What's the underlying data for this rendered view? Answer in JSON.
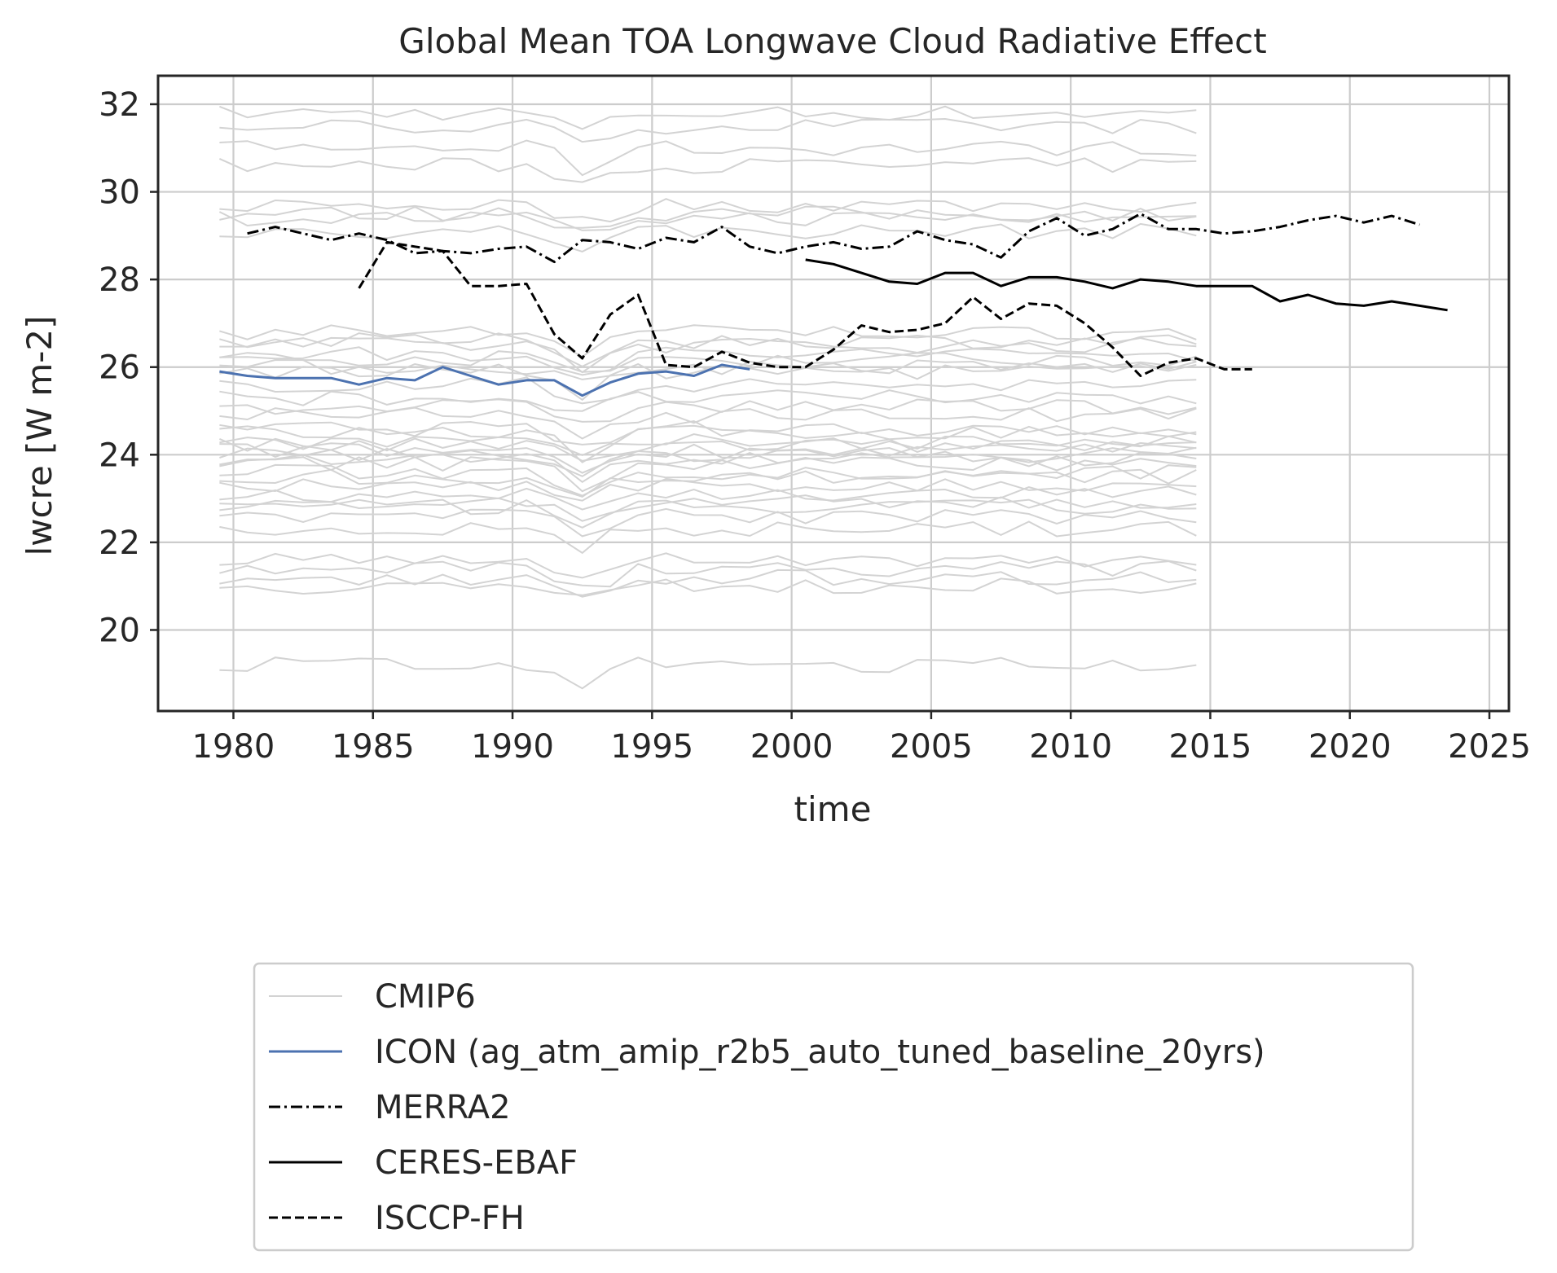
{
  "chart_data": {
    "type": "line",
    "title": "Global Mean TOA Longwave Cloud Radiative Effect",
    "xlabel": "time",
    "ylabel": "lwcre [W m-2]",
    "xlim": [
      1977.3,
      2025.7
    ],
    "ylim": [
      18.15,
      32.65
    ],
    "xticks": [
      1980,
      1985,
      1990,
      1995,
      2000,
      2005,
      2010,
      2015,
      2020,
      2025
    ],
    "yticks": [
      20,
      22,
      24,
      26,
      28,
      30,
      32
    ],
    "grid": true,
    "legend_position": "bottom-center below plot",
    "cmip6_ensemble": {
      "name": "CMIP6",
      "color": "#d3d3d3",
      "x_start": 1979.5,
      "x_end": 2014.5,
      "member_means": [
        31.8,
        31.5,
        31.0,
        30.6,
        29.7,
        29.5,
        29.4,
        29.1,
        26.8,
        26.6,
        26.5,
        26.3,
        26.2,
        26.0,
        25.9,
        25.6,
        25.3,
        25.1,
        24.9,
        24.6,
        24.5,
        24.3,
        24.2,
        24.1,
        24.0,
        23.9,
        23.8,
        23.6,
        23.5,
        23.3,
        23.1,
        22.9,
        22.8,
        22.6,
        22.3,
        21.6,
        21.4,
        21.2,
        21.0,
        19.2
      ]
    },
    "series": [
      {
        "name": "ICON (ag_atm_amip_r2b5_auto_tuned_baseline_20yrs)",
        "color": "#4c72b0",
        "style": "solid",
        "x": [
          1979.5,
          1980.5,
          1981.5,
          1982.5,
          1983.5,
          1984.5,
          1985.5,
          1986.5,
          1987.5,
          1988.5,
          1989.5,
          1990.5,
          1991.5,
          1992.5,
          1993.5,
          1994.5,
          1995.5,
          1996.5,
          1997.5,
          1998.5
        ],
        "y": [
          25.9,
          25.8,
          25.75,
          25.75,
          25.75,
          25.6,
          25.75,
          25.7,
          26.0,
          25.8,
          25.6,
          25.7,
          25.7,
          25.35,
          25.65,
          25.85,
          25.9,
          25.8,
          26.05,
          25.95
        ]
      },
      {
        "name": "MERRA2",
        "color": "#000000",
        "style": "dashdot",
        "x": [
          1980.5,
          1981.5,
          1982.5,
          1983.5,
          1984.5,
          1985.5,
          1986.5,
          1987.5,
          1988.5,
          1989.5,
          1990.5,
          1991.5,
          1992.5,
          1993.5,
          1994.5,
          1995.5,
          1996.5,
          1997.5,
          1998.5,
          1999.5,
          2000.5,
          2001.5,
          2002.5,
          2003.5,
          2004.5,
          2005.5,
          2006.5,
          2007.5,
          2008.5,
          2009.5,
          2010.5,
          2011.5,
          2012.5,
          2013.5,
          2014.5,
          2015.5,
          2016.5,
          2017.5,
          2018.5,
          2019.5,
          2020.5,
          2021.5,
          2022.5
        ],
        "y": [
          29.05,
          29.2,
          29.05,
          28.9,
          29.05,
          28.9,
          28.6,
          28.65,
          28.6,
          28.7,
          28.75,
          28.4,
          28.9,
          28.85,
          28.7,
          28.95,
          28.85,
          29.2,
          28.75,
          28.6,
          28.75,
          28.85,
          28.7,
          28.75,
          29.1,
          28.9,
          28.8,
          28.5,
          29.1,
          29.4,
          29.0,
          29.15,
          29.5,
          29.15,
          29.15,
          29.05,
          29.1,
          29.2,
          29.35,
          29.45,
          29.3,
          29.45,
          29.25
        ]
      },
      {
        "name": "CERES-EBAF",
        "color": "#000000",
        "style": "solid",
        "x": [
          2000.5,
          2001.5,
          2002.5,
          2003.5,
          2004.5,
          2005.5,
          2006.5,
          2007.5,
          2008.5,
          2009.5,
          2010.5,
          2011.5,
          2012.5,
          2013.5,
          2014.5,
          2015.5,
          2016.5,
          2017.5,
          2018.5,
          2019.5,
          2020.5,
          2021.5,
          2022.5,
          2023.5
        ],
        "y": [
          28.45,
          28.35,
          28.15,
          27.95,
          27.9,
          28.15,
          28.15,
          27.85,
          28.05,
          28.05,
          27.95,
          27.8,
          28.0,
          27.95,
          27.85,
          27.85,
          27.85,
          27.5,
          27.65,
          27.45,
          27.4,
          27.5,
          27.4,
          27.3
        ]
      },
      {
        "name": "ISCCP-FH",
        "color": "#000000",
        "style": "dashed",
        "x": [
          1984.5,
          1985.5,
          1986.5,
          1987.5,
          1988.5,
          1989.5,
          1990.5,
          1991.5,
          1992.5,
          1993.5,
          1994.5,
          1995.5,
          1996.5,
          1997.5,
          1998.5,
          1999.5,
          2000.5,
          2001.5,
          2002.5,
          2003.5,
          2004.5,
          2005.5,
          2006.5,
          2007.5,
          2008.5,
          2009.5,
          2010.5,
          2011.5,
          2012.5,
          2013.5,
          2014.5,
          2015.5,
          2016.5
        ],
        "y": [
          27.8,
          28.85,
          28.75,
          28.65,
          27.85,
          27.85,
          27.9,
          26.75,
          26.2,
          27.2,
          27.65,
          26.05,
          26.0,
          26.35,
          26.1,
          26.0,
          26.0,
          26.4,
          26.95,
          26.8,
          26.85,
          27.0,
          27.6,
          27.1,
          27.45,
          27.4,
          27.0,
          26.45,
          25.8,
          26.1,
          26.2,
          25.95,
          25.95
        ]
      }
    ]
  }
}
